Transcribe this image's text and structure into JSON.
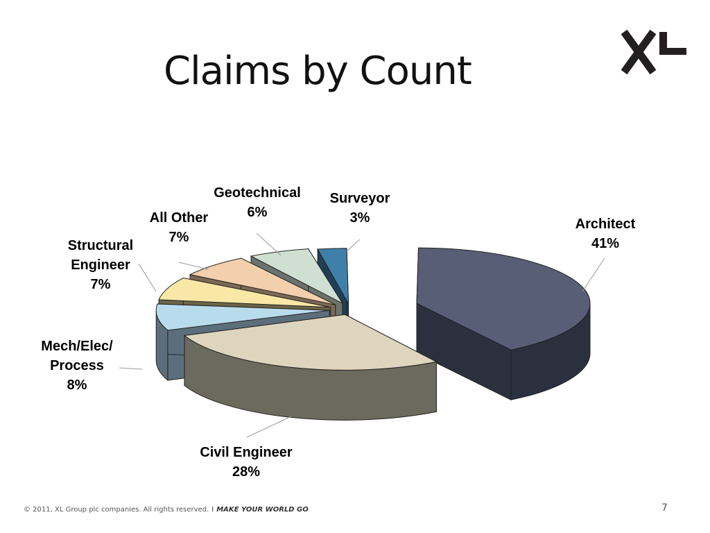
{
  "slide": {
    "title": "Claims by Count",
    "page_number": "7"
  },
  "footer": {
    "copyright": "© 2011, XL Group plc companies. All rights reserved.",
    "separator": "I",
    "tagline": "MAKE YOUR WORLD GO"
  },
  "logo": {
    "name": "xl-logo-icon",
    "color": "#231f20"
  },
  "chart_data": {
    "type": "pie",
    "title": "",
    "three_d": true,
    "exploded": true,
    "slices": [
      {
        "label": "Architect",
        "value": 41,
        "pct_label": "41%",
        "top": "#575e75",
        "side": "#2b303f"
      },
      {
        "label": "Civil Engineer",
        "value": 28,
        "pct_label": "28%",
        "top": "#ddd5bd",
        "side": "#6c6a5c"
      },
      {
        "label": "Mech/Elec/ Process",
        "value": 8,
        "pct_label": "8%",
        "top": "#b9dcec",
        "side": "#5c6e7b"
      },
      {
        "label": "Structural Engineer",
        "value": 7,
        "pct_label": "7%",
        "top": "#f8e7a6",
        "side": "#6b6447"
      },
      {
        "label": "All Other",
        "value": 7,
        "pct_label": "7%",
        "top": "#f3cfae",
        "side": "#7c6854"
      },
      {
        "label": "Geotechnical",
        "value": 6,
        "pct_label": "6%",
        "top": "#cfe0d3",
        "side": "#6a746c"
      },
      {
        "label": "Surveyor",
        "value": 3,
        "pct_label": "3%",
        "top": "#3f80aa",
        "side": "#203f55"
      }
    ]
  }
}
